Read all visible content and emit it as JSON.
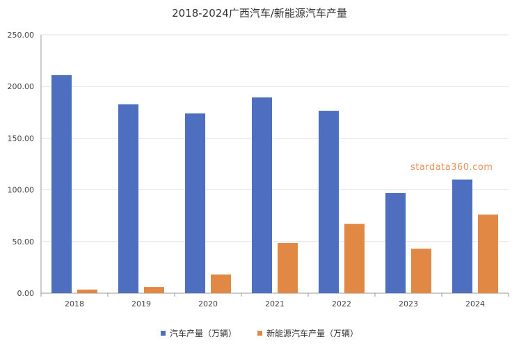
{
  "chart_data": {
    "type": "bar",
    "title": "2018-2024广西汽车/新能源汽车产量",
    "categories": [
      "2018",
      "2019",
      "2020",
      "2021",
      "2022",
      "2023",
      "2024"
    ],
    "series": [
      {
        "name": "汽车产量（万辆）",
        "color": "#4e6fc0",
        "values": [
          211.0,
          182.8,
          174.0,
          189.5,
          176.5,
          97.0,
          110.0
        ]
      },
      {
        "name": "新能源汽车产量（万辆）",
        "color": "#e08844",
        "values": [
          3.5,
          6.0,
          18.0,
          48.5,
          67.0,
          43.0,
          76.0
        ]
      }
    ],
    "ylim": [
      0,
      250
    ],
    "yticks": [
      0,
      50,
      100,
      150,
      200,
      250
    ],
    "ytick_labels": [
      "0.00",
      "50.00",
      "100.00",
      "150.00",
      "200.00",
      "250.00"
    ],
    "grid": true,
    "legend": "bottom"
  },
  "watermark": "stardata360.com"
}
